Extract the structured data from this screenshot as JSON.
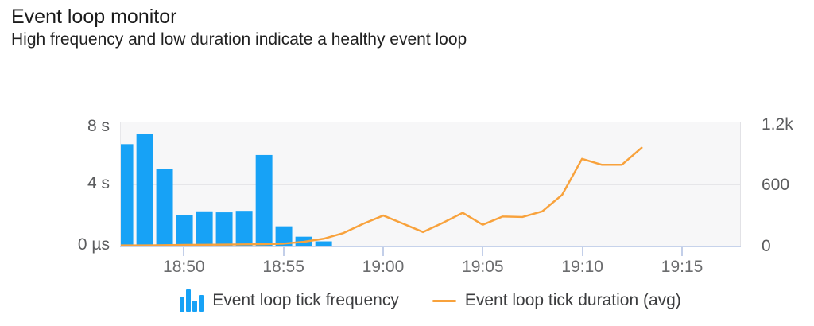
{
  "header": {
    "title": "Event loop monitor",
    "subtitle": "High frequency and low duration indicate a healthy event loop"
  },
  "colors": {
    "bar_blue": "#17a2f6",
    "line_orange": "#f8a23c",
    "plot_background": "#f7f7f8",
    "gridline": "#e6e6e9",
    "axis_line": "#c7d3eb",
    "axis_label_text": "#5b5c5e"
  },
  "chart_data": {
    "type": "combo",
    "grid": "horizontal",
    "legend_position": "bottom",
    "x_axis": {
      "tick_labels": [
        "18:50",
        "18:55",
        "19:00",
        "19:05",
        "19:10",
        "19:15"
      ]
    },
    "left_axis": {
      "tick_labels": [
        "8 s",
        "4 s",
        "0 µs"
      ],
      "unit": "duration",
      "range_seconds": [
        0,
        8
      ]
    },
    "right_axis": {
      "tick_labels": [
        "1.2k",
        "600",
        "0"
      ],
      "unit": "count",
      "range": [
        0,
        1200
      ]
    },
    "series": [
      {
        "name": "Event loop tick frequency",
        "type": "bar",
        "axis": "right",
        "color": "#17a2f6",
        "x": [
          "18:47",
          "18:48",
          "18:49",
          "18:50",
          "18:51",
          "18:52",
          "18:53",
          "18:54",
          "18:55",
          "18:56",
          "18:57"
        ],
        "values": [
          990,
          1090,
          750,
          305,
          340,
          330,
          345,
          885,
          195,
          95,
          50
        ]
      },
      {
        "name": "Event loop tick duration (avg)",
        "type": "line",
        "axis": "left",
        "color": "#f8a23c",
        "x": [
          "18:47",
          "18:48",
          "18:49",
          "18:50",
          "18:51",
          "18:52",
          "18:53",
          "18:54",
          "18:55",
          "18:56",
          "18:57",
          "18:58",
          "18:59",
          "19:00",
          "19:01",
          "19:02",
          "19:03",
          "19:04",
          "19:05",
          "19:06",
          "19:07",
          "19:08",
          "19:09",
          "19:10",
          "19:11",
          "19:12",
          "19:13"
        ],
        "values_seconds": [
          0.07,
          0.07,
          0.08,
          0.1,
          0.11,
          0.12,
          0.14,
          0.15,
          0.19,
          0.3,
          0.5,
          0.87,
          1.47,
          2.0,
          1.47,
          0.93,
          1.53,
          2.17,
          1.4,
          1.93,
          1.9,
          2.27,
          3.33,
          5.65,
          5.27,
          5.27,
          6.37
        ]
      }
    ]
  },
  "legend": {
    "items": [
      {
        "label": "Event loop tick frequency",
        "swatch": "bar-chart-icon",
        "color": "#17a2f6"
      },
      {
        "label": "Event loop tick duration (avg)",
        "swatch": "line-swatch",
        "color": "#f8a23c"
      }
    ]
  }
}
